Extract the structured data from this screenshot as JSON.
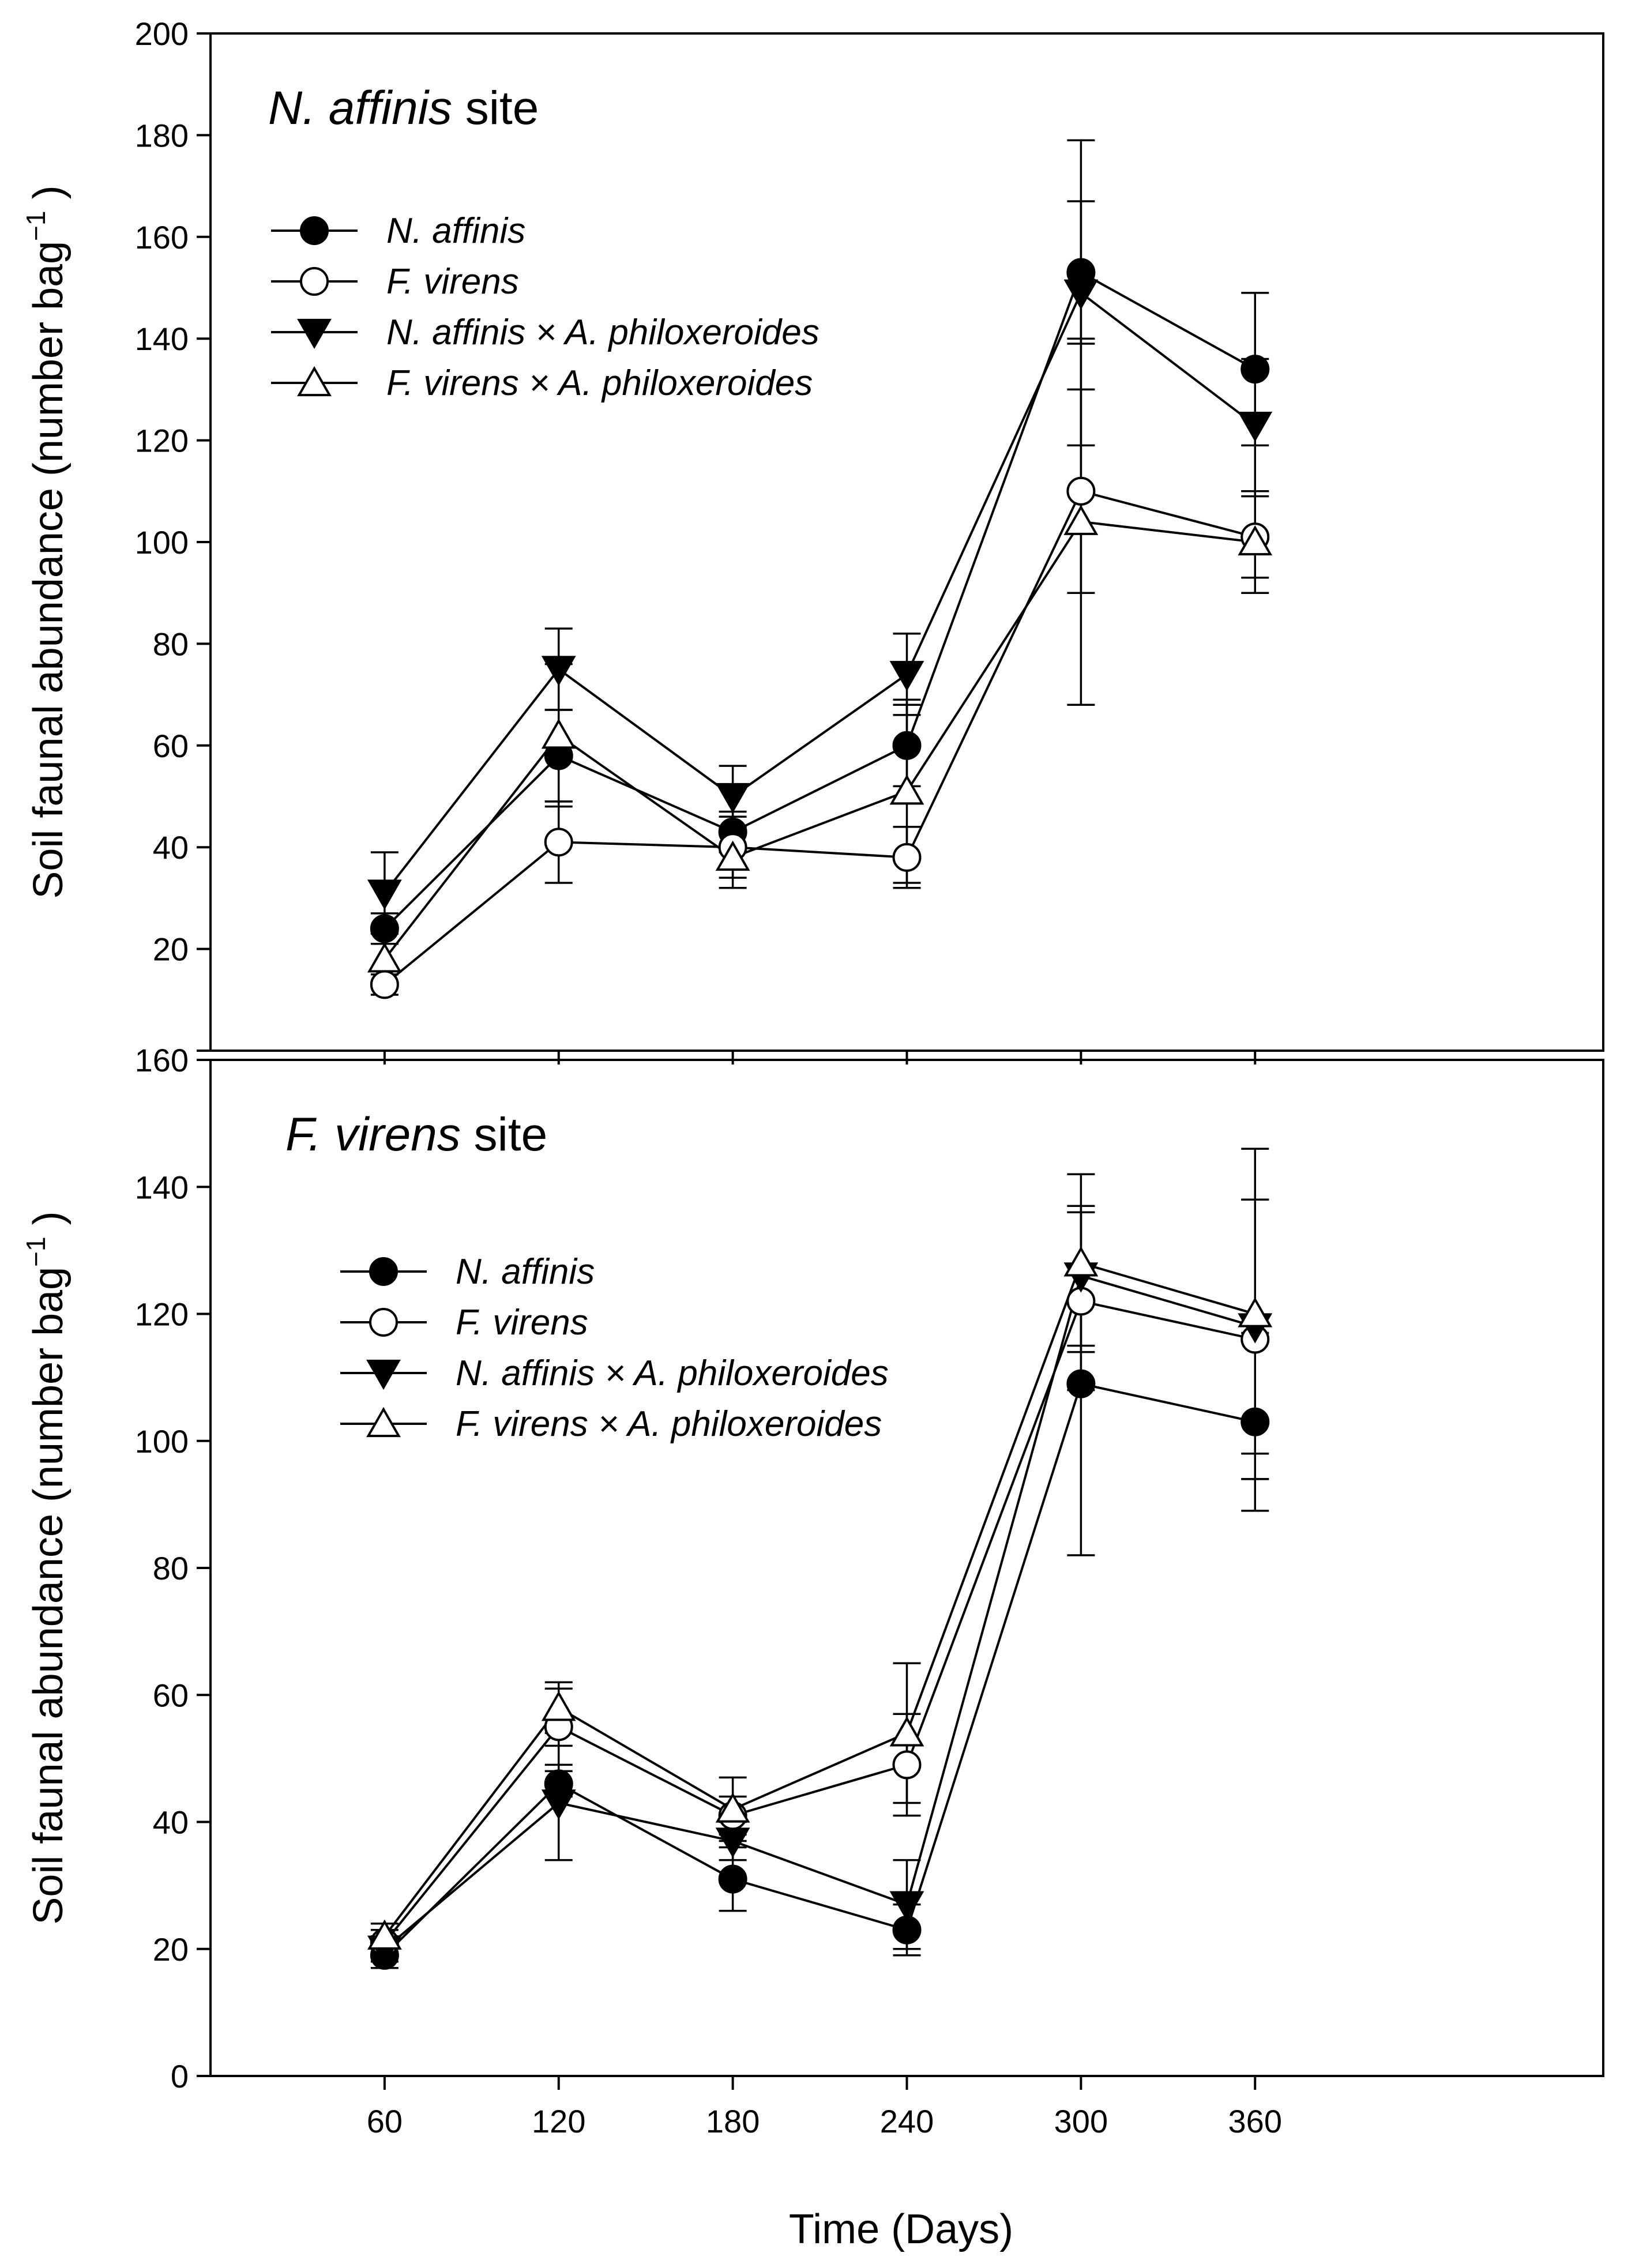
{
  "chart_data": [
    {
      "type": "line",
      "title_italic": "N. affinis",
      "title_rest": " site",
      "xlabel": "",
      "ylabel": "Soil faunal abundance (number bag",
      "ylabel_sup": "−1",
      "ylabel_close": " )",
      "xlim": [
        0,
        480
      ],
      "ylim": [
        0,
        200
      ],
      "yticks": [
        0,
        20,
        40,
        60,
        80,
        100,
        120,
        140,
        160,
        180,
        200
      ],
      "ytick_labels": [
        "",
        "20",
        "40",
        "60",
        "80",
        "100",
        "120",
        "140",
        "160",
        "180",
        "200"
      ],
      "x": [
        60,
        120,
        180,
        240,
        300,
        360
      ],
      "series": [
        {
          "name": "N. affinis",
          "marker": "circle-filled",
          "values": [
            24,
            58,
            43,
            60,
            153,
            134
          ],
          "errors": [
            3,
            9,
            4,
            8,
            14,
            15
          ]
        },
        {
          "name": "F. virens",
          "marker": "circle-open",
          "values": [
            13,
            41,
            40,
            38,
            110,
            101
          ],
          "errors": [
            2,
            8,
            6,
            6,
            20,
            8
          ]
        },
        {
          "name": "N. affinis × A. philoxeroides",
          "marker": "triangle-down-filled",
          "values": [
            31,
            75,
            50,
            74,
            149,
            123
          ],
          "errors": [
            8,
            8,
            6,
            8,
            30,
            13
          ]
        },
        {
          "name": "F. virens × A. philoxeroides",
          "marker": "triangle-up-open",
          "values": [
            18,
            62,
            38,
            51,
            104,
            100
          ],
          "errors": [
            5,
            14,
            6,
            18,
            36,
            10
          ]
        }
      ]
    },
    {
      "type": "line",
      "title_italic": "F. virens",
      "title_rest": " site",
      "xlabel": "Time (Days)",
      "ylabel": "Soil faunal abundance (number bag",
      "ylabel_sup": "−1",
      "ylabel_close": " )",
      "xlim": [
        0,
        480
      ],
      "ylim": [
        0,
        160
      ],
      "yticks": [
        0,
        20,
        40,
        60,
        80,
        100,
        120,
        140,
        160
      ],
      "ytick_labels": [
        "0",
        "20",
        "40",
        "60",
        "80",
        "100",
        "120",
        "140",
        "160"
      ],
      "xticks": [
        60,
        120,
        180,
        240,
        300,
        360
      ],
      "xtick_labels": [
        "60",
        "120",
        "180",
        "240",
        "300",
        "360"
      ],
      "x": [
        60,
        120,
        180,
        240,
        300,
        360
      ],
      "series": [
        {
          "name": "N. affinis",
          "marker": "circle-filled",
          "values": [
            19,
            46,
            31,
            23,
            109,
            103
          ],
          "errors": [
            2,
            2,
            5,
            4,
            27,
            14
          ]
        },
        {
          "name": "F. virens",
          "marker": "circle-open",
          "values": [
            21,
            55,
            41,
            49,
            122,
            116
          ],
          "errors": [
            2,
            6,
            3,
            8,
            14,
            22
          ]
        },
        {
          "name": "N. affinis × A. philoxeroides",
          "marker": "triangle-down-filled",
          "values": [
            20,
            43,
            37,
            27,
            126,
            118
          ],
          "errors": [
            2,
            9,
            3,
            7,
            11,
            20
          ]
        },
        {
          "name": "F. virens × A. philoxeroides",
          "marker": "triangle-up-open",
          "values": [
            22,
            58,
            42,
            54,
            128,
            120
          ],
          "errors": [
            2,
            4,
            5,
            11,
            14,
            26
          ]
        }
      ]
    }
  ]
}
